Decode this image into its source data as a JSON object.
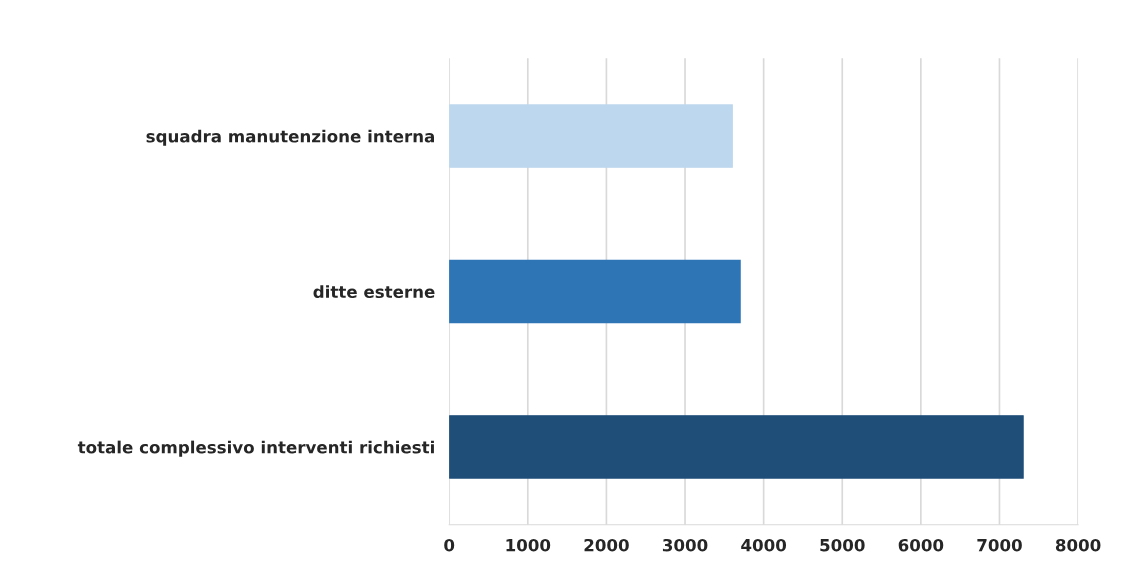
{
  "chart_data": {
    "type": "bar",
    "orientation": "horizontal",
    "categories": [
      "squadra manutenzione interna",
      "ditte esterne",
      "totale complessivo interventi richiesti"
    ],
    "values": [
      3600,
      3700,
      7300
    ],
    "colors": [
      "#bdd7ee",
      "#2e75b6",
      "#1f4e79"
    ],
    "xlim": [
      0,
      8000
    ],
    "xticks": [
      0,
      1000,
      2000,
      3000,
      4000,
      5000,
      6000,
      7000,
      8000
    ],
    "grid": "x"
  }
}
